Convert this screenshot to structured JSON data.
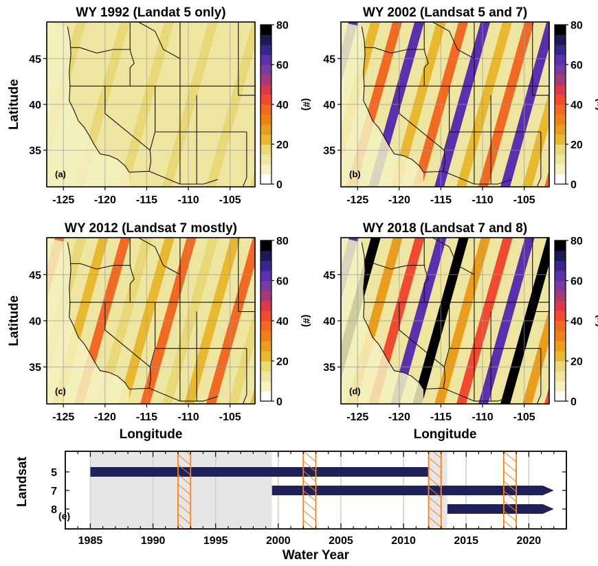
{
  "colors": {
    "colorbar_bins": [
      "#ffffff",
      "#f5f1c0",
      "#eee6a0",
      "#e8d878",
      "#e8b830",
      "#e89e1c",
      "#ee8218",
      "#f06a24",
      "#f04a30",
      "#d83a4c",
      "#a43a78",
      "#7a3a9e",
      "#5a30ac",
      "#38268a",
      "#1c1a52",
      "#000000"
    ],
    "background_pattern_light": "#e8d064",
    "swath_orange": "#e8a01e",
    "swath_red": "#f04a2e",
    "swath_purple": "#4a2ca8",
    "swath_black": "#100a18",
    "timeline_bar": "#1f2159",
    "timeline_shade": "#e6e6e6",
    "timeline_hatch": "#ff7f0e"
  },
  "chart_data": [
    {
      "type": "heatmap",
      "title": "WY 1992 (Landat 5 only)",
      "panel_label": "(a)",
      "ylabel": "Latitude",
      "xlabel": "",
      "xlim": [
        -127,
        -102
      ],
      "ylim": [
        31,
        49
      ],
      "x_ticks": [
        "-125",
        "-120",
        "-115",
        "-110",
        "-105"
      ],
      "y_ticks": [
        "45",
        "40",
        "35"
      ],
      "grid": true,
      "colorbar": {
        "label": "(#)",
        "range": [
          0,
          80
        ],
        "ticks": [
          "80",
          "60",
          "40",
          "20",
          "0"
        ]
      },
      "swath_levels": [
        12,
        18
      ]
    },
    {
      "type": "heatmap",
      "title": "WY 2002 (Landsat 5 and 7)",
      "panel_label": "(b)",
      "ylabel": "",
      "xlabel": "",
      "xlim": [
        -127,
        -102
      ],
      "ylim": [
        31,
        49
      ],
      "x_ticks": [
        "-125",
        "-120",
        "-115",
        "-110",
        "-105"
      ],
      "y_ticks": [
        "45",
        "40",
        "35"
      ],
      "grid": true,
      "colorbar": {
        "label": "(#)",
        "range": [
          0,
          80
        ],
        "ticks": [
          "80",
          "60",
          "40",
          "20",
          "0"
        ]
      },
      "swath_levels": [
        24,
        38,
        60
      ]
    },
    {
      "type": "heatmap",
      "title": "WY 2012 (Landsat 7 mostly)",
      "panel_label": "(c)",
      "ylabel": "Latitude",
      "xlabel": "Longitude",
      "xlim": [
        -127,
        -102
      ],
      "ylim": [
        31,
        49
      ],
      "x_ticks": [
        "-125",
        "-120",
        "-115",
        "-110",
        "-105"
      ],
      "y_ticks": [
        "45",
        "40",
        "35"
      ],
      "grid": true,
      "colorbar": {
        "label": "(#)",
        "range": [
          0,
          80
        ],
        "ticks": [
          "80",
          "60",
          "40",
          "20",
          "0"
        ]
      },
      "swath_levels": [
        16,
        24,
        38
      ]
    },
    {
      "type": "heatmap",
      "title": "WY 2018 (Landsat 7 and 8)",
      "panel_label": "(d)",
      "ylabel": "",
      "xlabel": "Longitude",
      "xlim": [
        -127,
        -102
      ],
      "ylim": [
        31,
        49
      ],
      "x_ticks": [
        "-125",
        "-120",
        "-115",
        "-110",
        "-105"
      ],
      "y_ticks": [
        "45",
        "40",
        "35"
      ],
      "grid": true,
      "colorbar": {
        "label": "(#)",
        "range": [
          0,
          80
        ],
        "ticks": [
          "80",
          "60",
          "40",
          "20",
          "0"
        ]
      },
      "swath_levels": [
        28,
        40,
        60,
        76
      ]
    },
    {
      "type": "bar",
      "title": "",
      "panel_label": "(e)",
      "xlabel": "Water Year",
      "ylabel": "Landsat",
      "xlim": [
        1983,
        2023
      ],
      "x_ticks": [
        1985,
        1990,
        1995,
        2000,
        2005,
        2010,
        2015,
        2020
      ],
      "grid": true,
      "categories": [
        "5",
        "7",
        "8"
      ],
      "series": [
        {
          "name": "5",
          "start": 1985,
          "end": 2012
        },
        {
          "name": "7",
          "start": 1999.5,
          "end": 2022
        },
        {
          "name": "8",
          "start": 2013.5,
          "end": 2022
        }
      ],
      "shaded_ranges": [
        [
          1985,
          1999.5
        ],
        [
          2012,
          2013.5
        ]
      ],
      "highlighted_years": [
        1992,
        2002,
        2012,
        2018
      ]
    }
  ]
}
